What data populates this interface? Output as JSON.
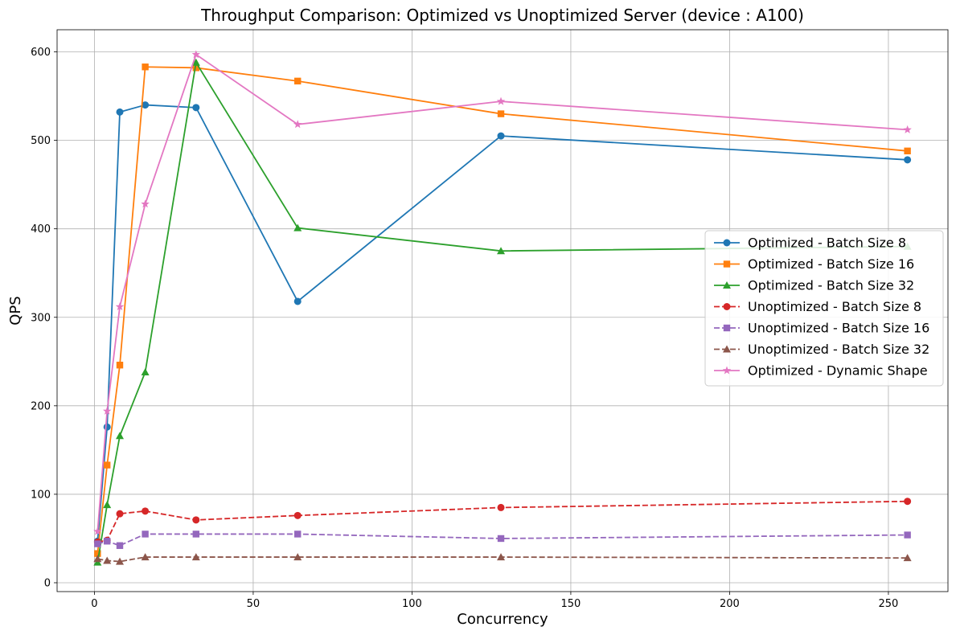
{
  "chart_data": {
    "type": "line",
    "title": "Throughput Comparison: Optimized vs Unoptimized Server (device : A100)",
    "xlabel": "Concurrency",
    "ylabel": "QPS",
    "xlim": [
      -11.75,
      268.75
    ],
    "ylim": [
      -10,
      625
    ],
    "xticks": [
      0,
      50,
      100,
      150,
      200,
      250
    ],
    "yticks": [
      0,
      100,
      200,
      300,
      400,
      500,
      600
    ],
    "grid": true,
    "legend_position": "center-right",
    "x": [
      1,
      4,
      8,
      16,
      32,
      64,
      128,
      256
    ],
    "series": [
      {
        "name": "Optimized - Batch Size 8",
        "color": "#1f77b4",
        "marker": "circle",
        "linestyle": "solid",
        "values": [
          47,
          176,
          532,
          540,
          537,
          318,
          505,
          478
        ]
      },
      {
        "name": "Optimized - Batch Size 16",
        "color": "#ff7f0e",
        "marker": "square",
        "linestyle": "solid",
        "values": [
          33,
          133,
          246,
          583,
          582,
          567,
          530,
          488
        ]
      },
      {
        "name": "Optimized - Batch Size 32",
        "color": "#2ca02c",
        "marker": "triangle",
        "linestyle": "solid",
        "values": [
          23,
          88,
          166,
          238,
          588,
          401,
          375,
          380
        ]
      },
      {
        "name": "Unoptimized - Batch Size 8",
        "color": "#d62728",
        "marker": "circle",
        "linestyle": "dashed",
        "values": [
          46,
          48,
          78,
          81,
          71,
          76,
          85,
          92
        ]
      },
      {
        "name": "Unoptimized - Batch Size 16",
        "color": "#9467bd",
        "marker": "square",
        "linestyle": "dashed",
        "values": [
          44,
          47,
          42,
          55,
          55,
          55,
          50,
          54
        ]
      },
      {
        "name": "Unoptimized - Batch Size 32",
        "color": "#8c564b",
        "marker": "triangle",
        "linestyle": "dashed",
        "values": [
          27,
          25,
          24,
          29,
          29,
          29,
          29,
          28
        ]
      },
      {
        "name": "Optimized - Dynamic Shape",
        "color": "#e377c2",
        "marker": "star",
        "linestyle": "solid",
        "values": [
          58,
          194,
          312,
          428,
          597,
          518,
          544,
          512
        ]
      }
    ]
  }
}
